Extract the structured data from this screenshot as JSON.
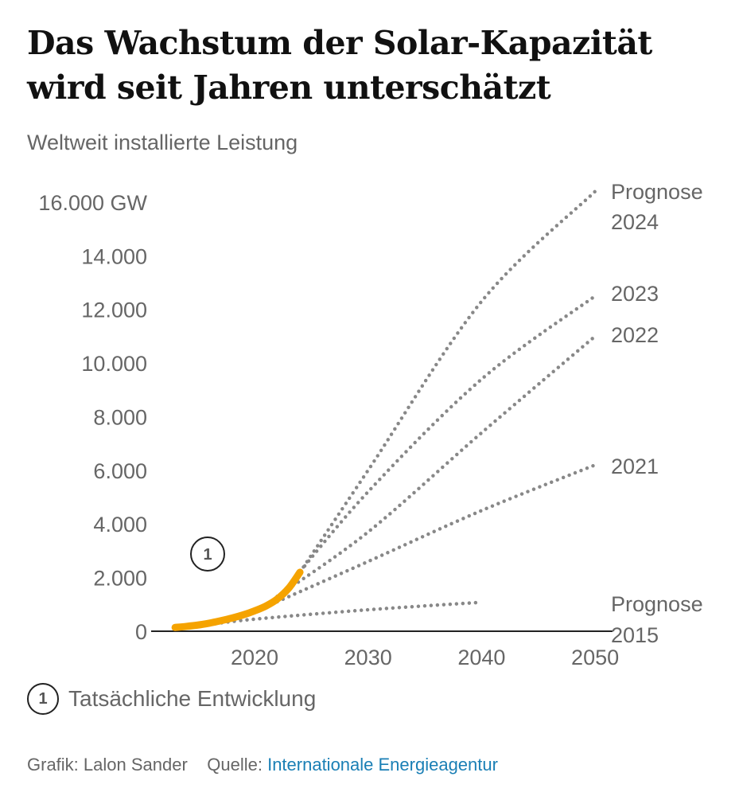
{
  "title": "Das Wachstum der Solar-Kapazität wird seit Jahren unterschätzt",
  "subtitle": "Weltweit installierte Leistung",
  "annotation_marker": "1",
  "legend": {
    "marker": "1",
    "text": "Tatsächliche Entwicklung"
  },
  "footer": {
    "credit": "Grafik: Lalon Sander",
    "source_label": "Quelle:",
    "source_link": "Internationale Energieagentur"
  },
  "colors": {
    "actual": "#f5a300",
    "forecast": "#888888",
    "link": "#1a7fb5"
  },
  "chart_data": {
    "type": "line",
    "xlim": [
      2013,
      2050
    ],
    "ylim": [
      0,
      16000
    ],
    "x_ticks": [
      2020,
      2030,
      2040,
      2050
    ],
    "x_tick_labels": [
      "2020",
      "2030",
      "2040",
      "2050"
    ],
    "y_ticks": [
      0,
      2000,
      4000,
      6000,
      8000,
      10000,
      12000,
      14000,
      16000
    ],
    "y_tick_labels": [
      "0",
      "2.000",
      "4.000",
      "6.000",
      "8.000",
      "10.000",
      "12.000",
      "14.000",
      "16.000 GW"
    ],
    "grid": false,
    "series": [
      {
        "name": "Tatsächliche Entwicklung",
        "style": "solid",
        "x": [
          2013,
          2014,
          2015,
          2016,
          2017,
          2018,
          2019,
          2020,
          2021,
          2022,
          2023,
          2024
        ],
        "y": [
          140,
          180,
          230,
          300,
          390,
          490,
          610,
          760,
          940,
          1200,
          1600,
          2200
        ]
      },
      {
        "name": "Prognose 2024",
        "label_lines": [
          "Prognose",
          "2024"
        ],
        "style": "dotted",
        "x": [
          2024,
          2030,
          2040,
          2050
        ],
        "y": [
          2200,
          6000,
          12300,
          16400
        ]
      },
      {
        "name": "2023",
        "label_lines": [
          "2023"
        ],
        "style": "dotted",
        "x": [
          2023,
          2030,
          2040,
          2050
        ],
        "y": [
          1700,
          5200,
          9400,
          12500
        ]
      },
      {
        "name": "2022",
        "label_lines": [
          "2022"
        ],
        "style": "dotted",
        "x": [
          2022,
          2030,
          2040,
          2050
        ],
        "y": [
          1300,
          3700,
          7400,
          11000
        ]
      },
      {
        "name": "2021",
        "label_lines": [
          "2021"
        ],
        "style": "dotted",
        "x": [
          2022,
          2030,
          2040,
          2050
        ],
        "y": [
          1100,
          2600,
          4500,
          6200
        ]
      },
      {
        "name": "Prognose 2015",
        "label_lines": [
          "Prognose",
          "2015"
        ],
        "style": "dotted",
        "x": [
          2016,
          2020,
          2030,
          2040
        ],
        "y": [
          250,
          450,
          800,
          1080
        ]
      }
    ]
  }
}
